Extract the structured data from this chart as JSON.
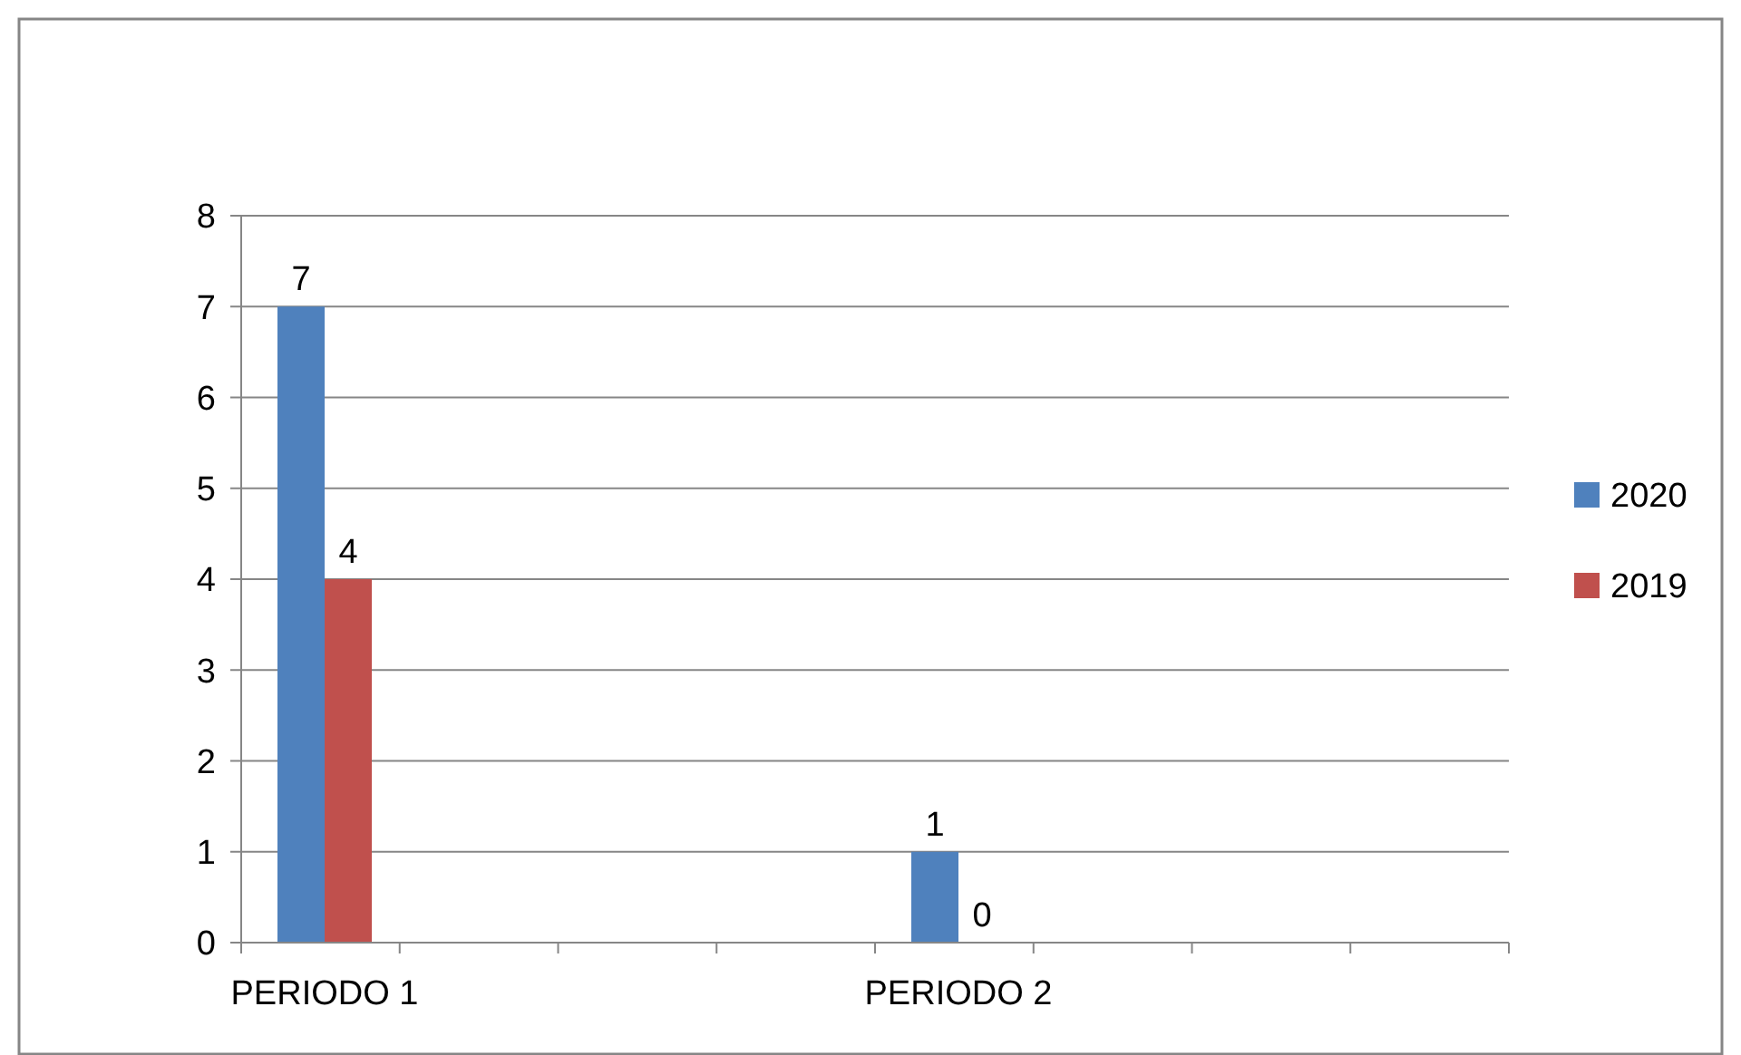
{
  "chart_data": {
    "type": "bar",
    "categories": [
      "PERIODO 1",
      null,
      null,
      null,
      "PERIODO 2",
      null,
      null,
      null
    ],
    "series": [
      {
        "name": "2020",
        "color": "#4f81bd",
        "values": [
          7,
          null,
          null,
          null,
          1,
          null,
          null,
          null
        ]
      },
      {
        "name": "2019",
        "color": "#c0504d",
        "values": [
          4,
          null,
          null,
          null,
          0,
          null,
          null,
          null
        ]
      }
    ],
    "ylim": [
      0,
      8
    ],
    "yticks": [
      0,
      1,
      2,
      3,
      4,
      5,
      6,
      7,
      8
    ],
    "grid": "y",
    "legend": "right",
    "data_labels": true
  }
}
